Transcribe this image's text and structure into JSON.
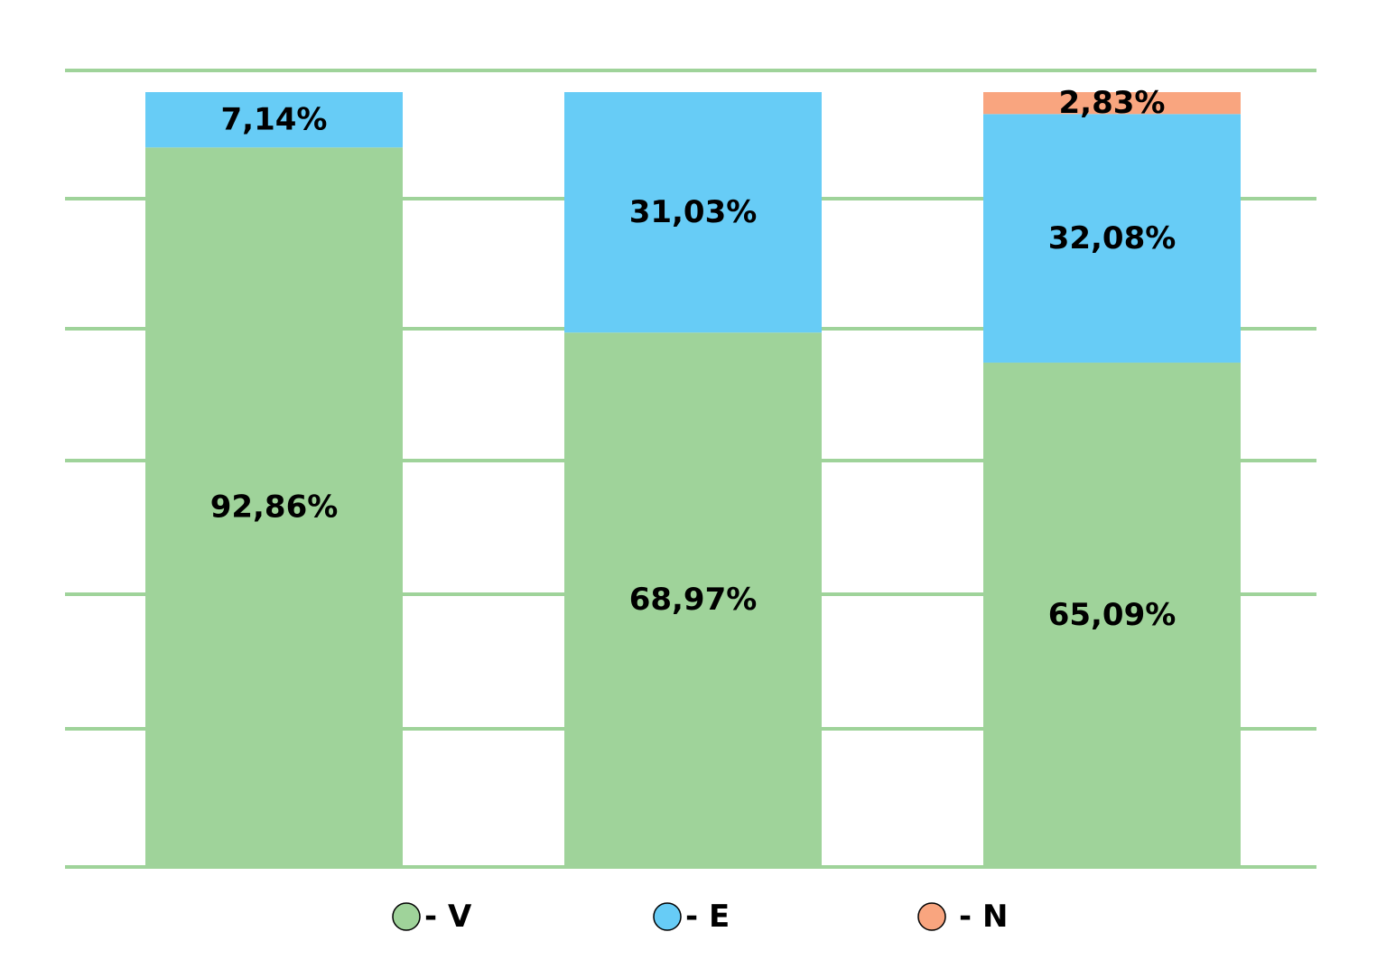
{
  "chart_data": {
    "type": "bar",
    "stacked": true,
    "normalized": true,
    "categories": [
      "",
      "",
      ""
    ],
    "series": [
      {
        "name": "V",
        "color": "#9fd39a",
        "values": [
          92.86,
          68.97,
          65.09
        ],
        "labels": [
          "92,86%",
          "68,97%",
          "65,09%"
        ]
      },
      {
        "name": "E",
        "color": "#67ccf6",
        "values": [
          7.14,
          31.03,
          32.08
        ],
        "labels": [
          "7,14%",
          "31,03%",
          "32,08%"
        ]
      },
      {
        "name": "N",
        "color": "#f9a57f",
        "values": [
          0,
          0,
          2.83
        ],
        "labels": [
          "",
          "",
          "2,83%"
        ]
      }
    ],
    "title": "",
    "xlabel": "",
    "ylabel": "",
    "ylim": [
      0,
      100
    ],
    "grid": true,
    "grid_color": "#9fd39a",
    "legend": {
      "placement": "bottom",
      "items": [
        {
          "marker_color": "#9fd39a",
          "text": "- V"
        },
        {
          "marker_color": "#67ccf6",
          "text": "- E"
        },
        {
          "marker_color": "#f9a57f",
          "text": "- N"
        }
      ]
    }
  }
}
